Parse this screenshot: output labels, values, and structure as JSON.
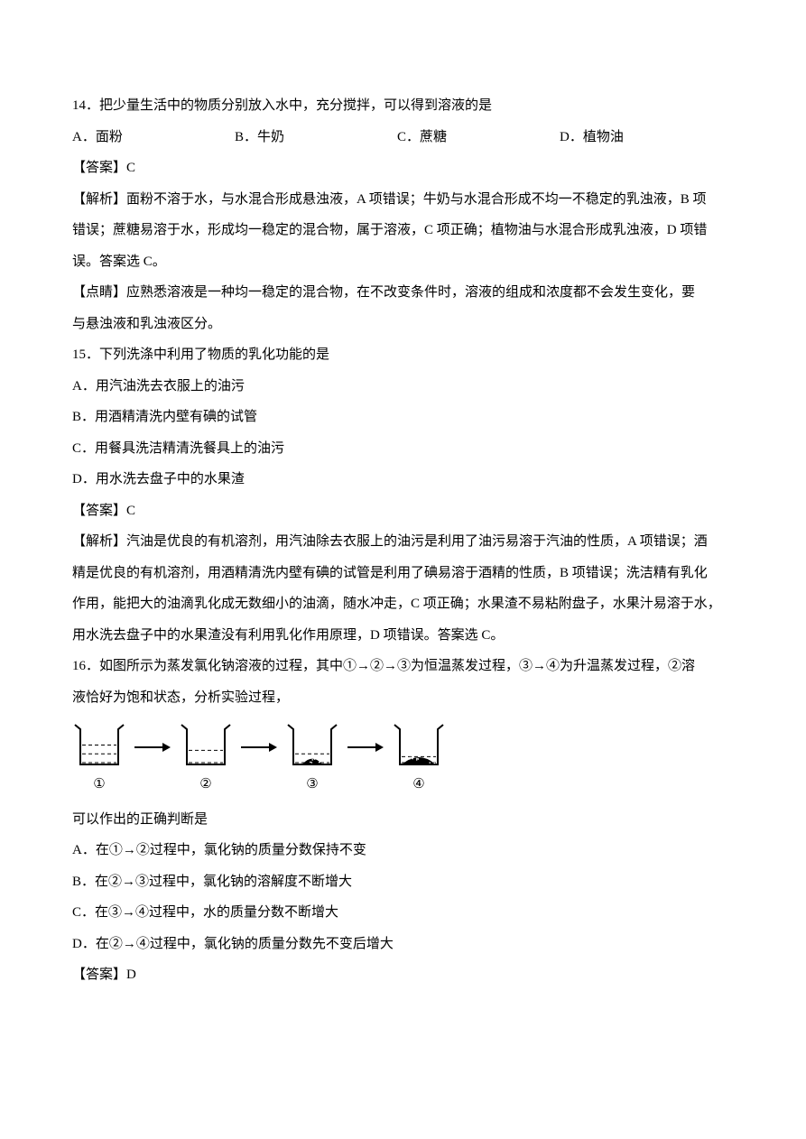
{
  "q14": {
    "stem": "14．把少量生活中的物质分别放入水中，充分搅拌，可以得到溶液的是",
    "optA": "A．面粉",
    "optB": "B．牛奶",
    "optC": "C．蔗糖",
    "optD": "D．植物油",
    "answer": "【答案】C",
    "expl1": "【解析】面粉不溶于水，与水混合形成悬浊液，A 项错误；牛奶与水混合形成不均一不稳定的乳浊液，B 项",
    "expl2": "错误；蔗糖易溶于水，形成均一稳定的混合物，属于溶液，C 项正确；植物油与水混合形成乳浊液，D 项错",
    "expl3": "误。答案选 C。",
    "note1": "【点睛】应熟悉溶液是一种均一稳定的混合物，在不改变条件时，溶液的组成和浓度都不会发生变化，要",
    "note2": "与悬浊液和乳浊液区分。"
  },
  "q15": {
    "stem": "15．下列洗涤中利用了物质的乳化功能的是",
    "optA": "A．用汽油洗去衣服上的油污",
    "optB": "B．用酒精清洗内壁有碘的试管",
    "optC": "C．用餐具洗洁精清洗餐具上的油污",
    "optD": "D．用水洗去盘子中的水果渣",
    "answer": "【答案】C",
    "expl1": "【解析】汽油是优良的有机溶剂，用汽油除去衣服上的油污是利用了油污易溶于汽油的性质，A 项错误；酒",
    "expl2": "精是优良的有机溶剂，用酒精清洗内壁有碘的试管是利用了碘易溶于酒精的性质，B 项错误；洗洁精有乳化",
    "expl3": "作用，能把大的油滴乳化成无数细小的油滴，随水冲走，C 项正确；水果渣不易粘附盘子，水果汁易溶于水，",
    "expl4": "用水洗去盘子中的水果渣没有利用乳化作用原理，D 项错误。答案选 C。"
  },
  "q16": {
    "stem1": "16．如图所示为蒸发氯化钠溶液的过程，其中①→②→③为恒温蒸发过程，③→④为升温蒸发过程，②溶",
    "stem2": "液恰好为饱和状态，分析实验过程，",
    "post": "可以作出的正确判断是",
    "optA": "A．在①→②过程中，氯化钠的质量分数保持不变",
    "optB": "B．在②→③过程中，氯化钠的溶解度不断增大",
    "optC": "C．在③→④过程中，水的质量分数不断增大",
    "optD": "D．在②→④过程中，氯化钠的质量分数先不变后增大",
    "answer": "【答案】D"
  },
  "diagram": {
    "labels": [
      "①",
      "②",
      "③",
      "④"
    ],
    "beaker_stroke": "#000000",
    "beaker_fill": "#ffffff",
    "arrow_color": "#000000",
    "beaker_width": 60,
    "beaker_height": 50,
    "liquid_levels": [
      0.55,
      0.4,
      0.3,
      0.22
    ],
    "sediment": [
      false,
      false,
      true,
      true
    ],
    "sediment_amount": [
      0,
      0,
      0.35,
      0.75
    ]
  }
}
